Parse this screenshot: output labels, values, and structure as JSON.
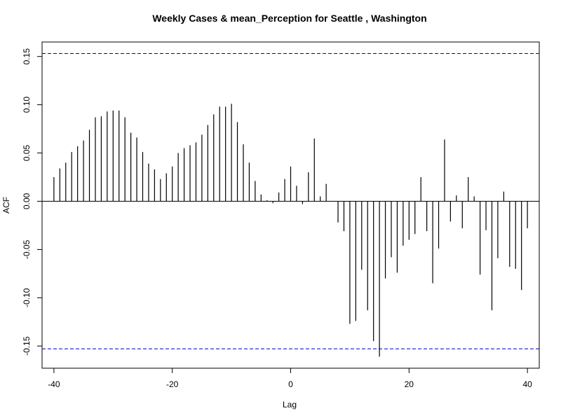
{
  "chart_data": {
    "type": "bar",
    "title": "Weekly Cases & mean_Perception for Seattle , Washington",
    "xlabel": "Lag",
    "ylabel": "ACF",
    "xlim": [
      -42,
      42
    ],
    "ylim": [
      -0.173,
      0.165
    ],
    "x_ticks": [
      -40,
      -20,
      0,
      20,
      40
    ],
    "x_tick_labels": [
      "-40",
      "-20",
      "0",
      "20",
      "40"
    ],
    "y_ticks": [
      -0.15,
      -0.1,
      -0.05,
      0.0,
      0.05,
      0.1,
      0.15
    ],
    "y_tick_labels": [
      "-0.15",
      "-0.10",
      "-0.05",
      "0.00",
      "0.05",
      "0.10",
      "0.15"
    ],
    "confidence_bounds": [
      0.153,
      -0.153
    ],
    "confidence_color": "#0000cc",
    "bar_color": "#000000",
    "x": [
      -40,
      -39,
      -38,
      -37,
      -36,
      -35,
      -34,
      -33,
      -32,
      -31,
      -30,
      -29,
      -28,
      -27,
      -26,
      -25,
      -24,
      -23,
      -22,
      -21,
      -20,
      -19,
      -18,
      -17,
      -16,
      -15,
      -14,
      -13,
      -12,
      -11,
      -10,
      -9,
      -8,
      -7,
      -6,
      -5,
      -4,
      -3,
      -2,
      -1,
      0,
      1,
      2,
      3,
      4,
      5,
      6,
      7,
      8,
      9,
      10,
      11,
      12,
      13,
      14,
      15,
      16,
      17,
      18,
      19,
      20,
      21,
      22,
      23,
      24,
      25,
      26,
      27,
      28,
      29,
      30,
      31,
      32,
      33,
      34,
      35,
      36,
      37,
      38,
      39,
      40
    ],
    "values": [
      0.025,
      0.034,
      0.04,
      0.051,
      0.057,
      0.063,
      0.074,
      0.087,
      0.088,
      0.093,
      0.094,
      0.094,
      0.087,
      0.071,
      0.066,
      0.051,
      0.039,
      0.033,
      0.023,
      0.029,
      0.036,
      0.05,
      0.055,
      0.058,
      0.061,
      0.069,
      0.079,
      0.09,
      0.098,
      0.098,
      0.101,
      0.082,
      0.059,
      0.04,
      0.021,
      0.007,
      0.001,
      -0.002,
      0.009,
      0.023,
      0.036,
      0.016,
      -0.003,
      0.03,
      0.065,
      0.005,
      0.018,
      0.0,
      -0.022,
      -0.031,
      -0.127,
      -0.124,
      -0.071,
      -0.113,
      -0.145,
      -0.161,
      -0.08,
      -0.058,
      -0.074,
      -0.046,
      -0.04,
      -0.034,
      0.025,
      -0.031,
      -0.085,
      -0.049,
      0.064,
      -0.021,
      0.006,
      -0.028,
      0.025,
      0.005,
      -0.076,
      -0.03,
      -0.113,
      -0.059,
      0.01,
      -0.068,
      -0.07,
      -0.092,
      -0.028
    ]
  }
}
